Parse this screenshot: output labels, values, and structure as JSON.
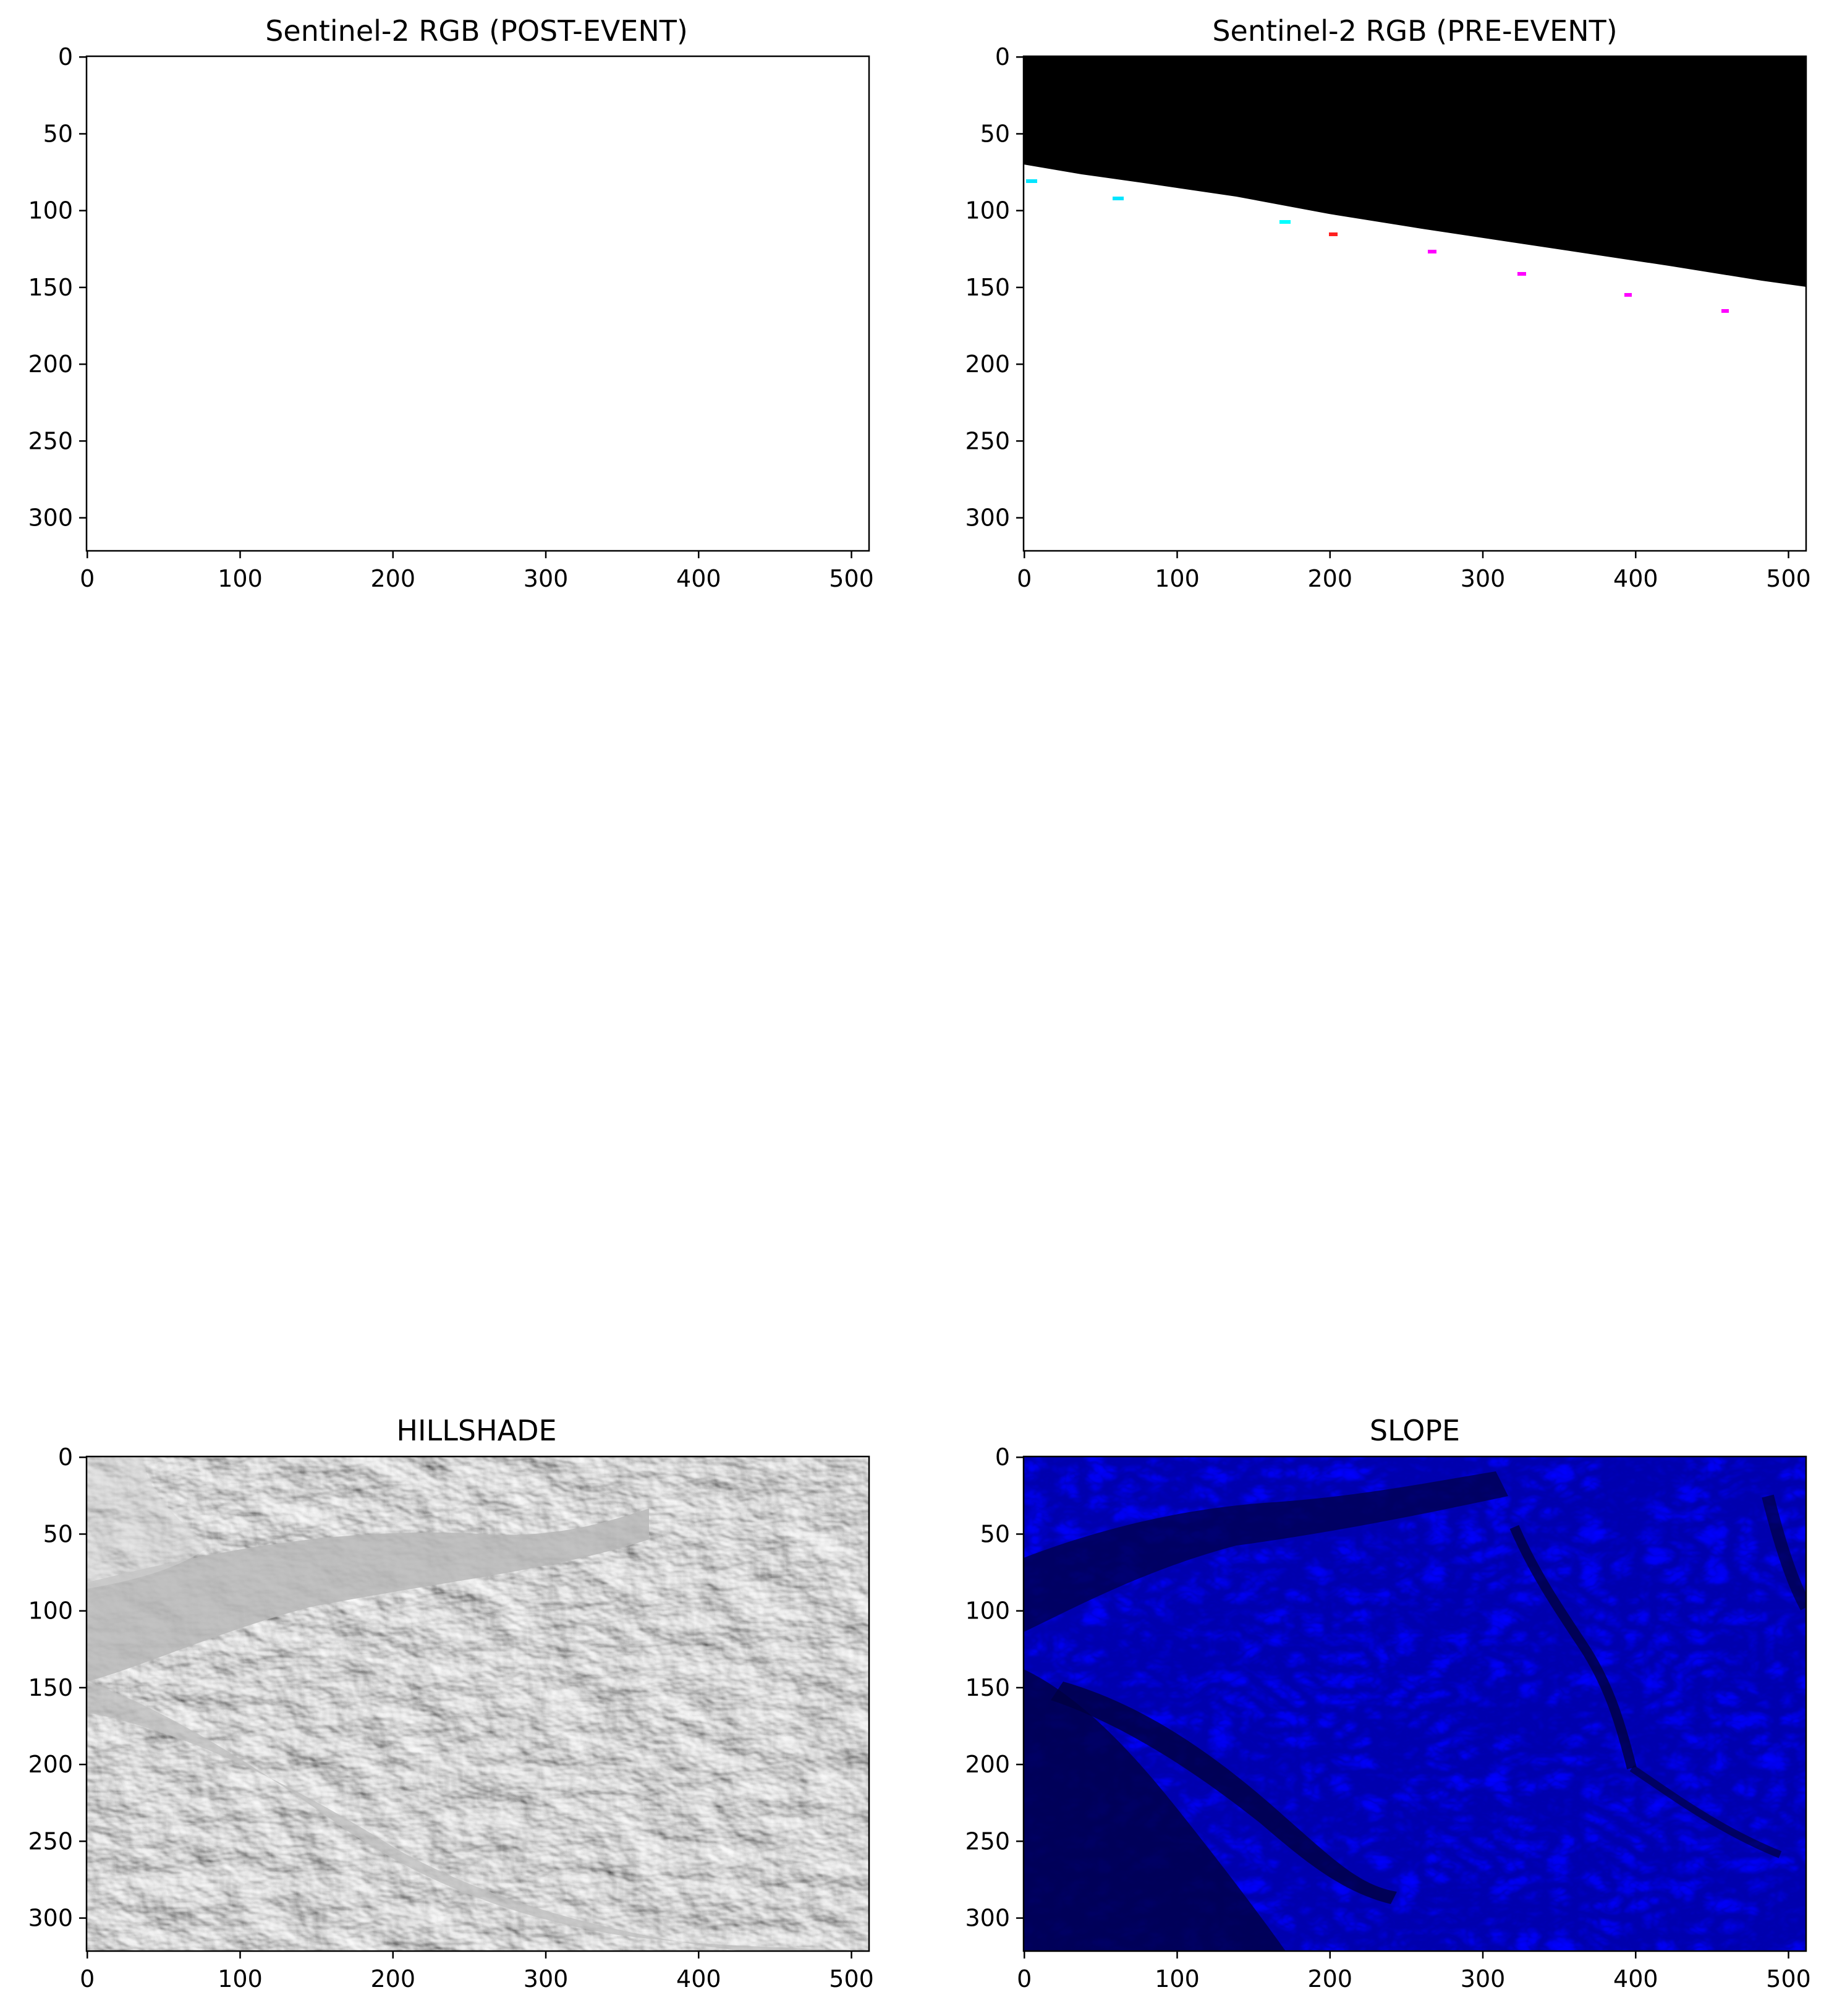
{
  "panels": [
    {
      "title": "Sentinel-2 RGB (POST-EVENT)",
      "image": "blank-white",
      "xticks": [
        "0",
        "100",
        "200",
        "300",
        "400",
        "500"
      ],
      "yticks": [
        "0",
        "50",
        "100",
        "150",
        "200",
        "250",
        "300"
      ]
    },
    {
      "title": "Sentinel-2 RGB (PRE-EVENT)",
      "image": "black-nodata-top-wedge-over-white",
      "xticks": [
        "0",
        "100",
        "200",
        "300",
        "400",
        "500"
      ],
      "yticks": [
        "0",
        "50",
        "100",
        "150",
        "200",
        "250",
        "300"
      ]
    },
    {
      "title": "HILLSHADE",
      "image": "grayscale-shaded-relief",
      "xticks": [
        "0",
        "100",
        "200",
        "300",
        "400",
        "500"
      ],
      "yticks": [
        "0",
        "50",
        "100",
        "150",
        "200",
        "250",
        "300"
      ]
    },
    {
      "title": "SLOPE",
      "image": "blue-slope-map",
      "xticks": [
        "0",
        "100",
        "200",
        "300",
        "400",
        "500"
      ],
      "yticks": [
        "0",
        "50",
        "100",
        "150",
        "200",
        "250",
        "300"
      ]
    }
  ],
  "colors": {
    "nodata": "#000000",
    "hillshade_base": "#c8c8c8",
    "slope_base": "#0000b4",
    "slope_dark": "#00003c"
  }
}
